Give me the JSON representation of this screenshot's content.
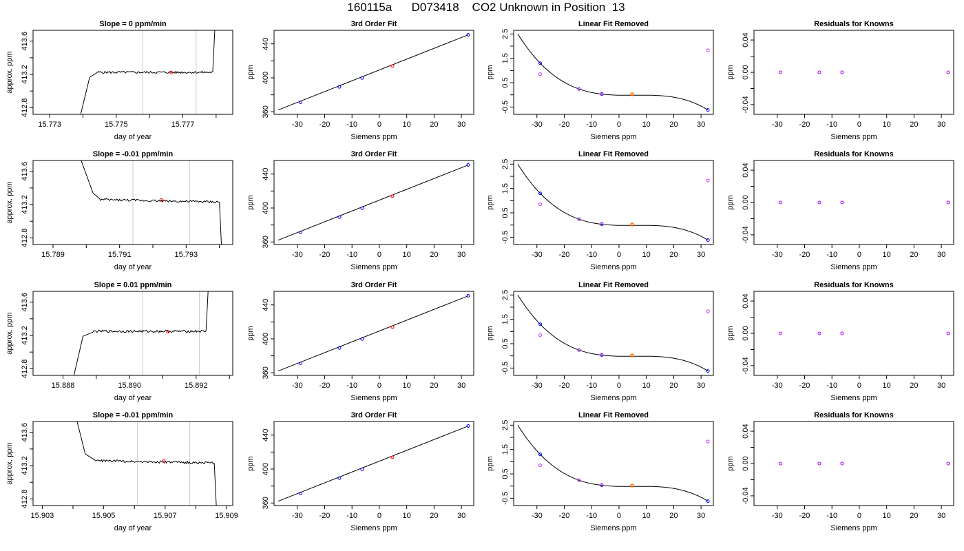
{
  "figure_title": "160115a      D073418    CO2 Unknown in Position  13",
  "colors": {
    "frame": "#000000",
    "vertical_marker": "#c8c8c8",
    "known_point": "#0000ff",
    "unknown_point": "#ff0000",
    "unknown_point_fit": "#ff6600",
    "residual_point": "#aa00ff",
    "observed_point": "#cc33ff"
  },
  "chart_data": [
    {
      "type": "line",
      "title": "Slope =  0  ppm/min",
      "xlabel": "day of year",
      "ylabel": "approx. ppm",
      "xlim": [
        15.7725,
        15.7785
      ],
      "ylim": [
        412.72,
        413.73
      ],
      "xticks": [
        "15.773",
        "15.774",
        "15.775",
        "15.776",
        "15.777",
        "15.778"
      ],
      "xticklabels": [
        "15.773",
        "",
        "15.775",
        "",
        "15.777",
        ""
      ],
      "yticks": [
        "412.8",
        "413.0",
        "413.2",
        "413.4",
        "413.6"
      ],
      "yticklabels": [
        "412.8",
        "",
        "413.2",
        "",
        "413.6"
      ],
      "vlines": [
        15.7758,
        15.7774
      ],
      "trace": {
        "start": 15.7739,
        "rise_end": 15.7742,
        "flat_start": 15.7744,
        "end": 15.7779,
        "shape": "rise",
        "level": 413.225
      },
      "point": {
        "x": 15.77665,
        "y": 413.223
      }
    },
    {
      "type": "scatter",
      "title": "3rd Order Fit",
      "xlabel": "Siemens ppm",
      "ylabel": "ppm",
      "xlim": [
        -38.5,
        34.5
      ],
      "ylim": [
        357,
        456
      ],
      "xticks": [
        -30,
        -20,
        -10,
        0,
        10,
        20,
        30
      ],
      "xticklabels": [
        "-30",
        "-20",
        "-10",
        "0",
        "10",
        "20",
        "30"
      ],
      "yticks": [
        360,
        380,
        400,
        420,
        440
      ],
      "yticklabels": [
        "360",
        "",
        "400",
        "",
        "440"
      ],
      "fit_line": {
        "x": [
          -37,
          32.5
        ],
        "y": [
          362.1,
          450.7
        ]
      },
      "known_x": [
        -28.8,
        -14.6,
        -6.3,
        32.5
      ],
      "known_y": [
        371.2,
        389.3,
        399.8,
        450.7
      ],
      "unknown": {
        "x": 4.8,
        "y": 413.9
      }
    },
    {
      "type": "scatter",
      "title": "Linear Fit Removed",
      "xlabel": "Siemens ppm",
      "ylabel": "ppm",
      "xlim": [
        -38.5,
        34.5
      ],
      "ylim": [
        -0.8,
        2.65
      ],
      "xticks": [
        -30,
        -20,
        -10,
        0,
        10,
        20,
        30
      ],
      "xticklabels": [
        "-30",
        "-20",
        "-10",
        "0",
        "10",
        "20",
        "30"
      ],
      "yticks": [
        -0.5,
        0,
        0.5,
        1,
        1.5,
        2,
        2.5
      ],
      "yticklabels": [
        "-0.5",
        "",
        "0.5",
        "",
        "1.5",
        "",
        "2.5"
      ],
      "fit_curve": {
        "x": [
          -37,
          -28.8,
          -14.6,
          -6.3,
          4.8,
          32.5
        ],
        "y": [
          2.52,
          1.3,
          0.24,
          0.03,
          0.02,
          -0.62
        ]
      },
      "known_x": [
        -28.8,
        -14.6,
        -6.3,
        32.5
      ],
      "known_y": [
        1.3,
        0.24,
        0.03,
        -0.62
      ],
      "observed_x": [
        -28.8,
        -14.6,
        -6.3,
        32.5
      ],
      "observed_y": [
        0.85,
        0.24,
        0.05,
        1.83
      ],
      "unknown": {
        "x": 4.8,
        "y": 0.02
      }
    },
    {
      "type": "scatter",
      "title": "Residuals for Knowns",
      "xlabel": "Siemens ppm",
      "ylabel": "ppm",
      "xlim": [
        -38.5,
        34.5
      ],
      "ylim": [
        -0.052,
        0.052
      ],
      "xticks": [
        -30,
        -20,
        -10,
        0,
        10,
        20,
        30
      ],
      "xticklabels": [
        "-30",
        "-20",
        "-10",
        "0",
        "10",
        "20",
        "30"
      ],
      "yticks": [
        -0.04,
        -0.02,
        0,
        0.02,
        0.04
      ],
      "yticklabels": [
        "-0.04",
        "",
        "0.00",
        "",
        "0.04"
      ],
      "x": [
        -28.8,
        -14.6,
        -6.3,
        32.5
      ],
      "y": [
        0,
        0,
        0,
        0
      ]
    },
    {
      "type": "line",
      "title": "Slope =  -0.01  ppm/min",
      "xlabel": "day of year",
      "ylabel": "approx. ppm",
      "xlim": [
        15.7884,
        15.7944
      ],
      "ylim": [
        412.72,
        413.73
      ],
      "xticks": [
        "15.789",
        "15.790",
        "15.791",
        "15.792",
        "15.793",
        "15.794"
      ],
      "xticklabels": [
        "15.789",
        "",
        "15.791",
        "",
        "15.793",
        ""
      ],
      "yticks": [
        "412.8",
        "413.0",
        "413.2",
        "413.4",
        "413.6"
      ],
      "yticklabels": [
        "412.8",
        "",
        "413.2",
        "",
        "413.6"
      ],
      "vlines": [
        15.7914,
        15.7931
      ],
      "trace": {
        "start": 15.7898,
        "rise_end": 15.7902,
        "flat_start": 15.7904,
        "end": 15.794,
        "shape": "fall",
        "level": 413.26
      },
      "point": {
        "x": 15.79225,
        "y": 413.255
      }
    },
    {
      "type": "scatter",
      "title": "3rd Order Fit",
      "xlabel": "Siemens ppm",
      "ylabel": "ppm",
      "xlim": [
        -38.5,
        34.5
      ],
      "ylim": [
        357,
        456
      ],
      "xticks": [
        -30,
        -20,
        -10,
        0,
        10,
        20,
        30
      ],
      "xticklabels": [
        "-30",
        "-20",
        "-10",
        "0",
        "10",
        "20",
        "30"
      ],
      "yticks": [
        360,
        380,
        400,
        420,
        440
      ],
      "yticklabels": [
        "360",
        "",
        "400",
        "",
        "440"
      ],
      "fit_line": {
        "x": [
          -37,
          32.5
        ],
        "y": [
          362.1,
          450.7
        ]
      },
      "known_x": [
        -28.8,
        -14.6,
        -6.3,
        32.5
      ],
      "known_y": [
        371.2,
        389.3,
        399.8,
        450.7
      ],
      "unknown": {
        "x": 4.8,
        "y": 413.9
      }
    },
    {
      "type": "scatter",
      "title": "Linear Fit Removed",
      "xlabel": "Siemens ppm",
      "ylabel": "ppm",
      "xlim": [
        -38.5,
        34.5
      ],
      "ylim": [
        -0.8,
        2.65
      ],
      "xticks": [
        -30,
        -20,
        -10,
        0,
        10,
        20,
        30
      ],
      "xticklabels": [
        "-30",
        "-20",
        "-10",
        "0",
        "10",
        "20",
        "30"
      ],
      "yticks": [
        -0.5,
        0,
        0.5,
        1,
        1.5,
        2,
        2.5
      ],
      "yticklabels": [
        "-0.5",
        "",
        "0.5",
        "",
        "1.5",
        "",
        "2.5"
      ],
      "fit_curve": {
        "x": [
          -37,
          -28.8,
          -14.6,
          -6.3,
          4.8,
          32.5
        ],
        "y": [
          2.52,
          1.3,
          0.24,
          0.03,
          0.02,
          -0.62
        ]
      },
      "known_x": [
        -28.8,
        -14.6,
        -6.3,
        32.5
      ],
      "known_y": [
        1.3,
        0.24,
        0.03,
        -0.62
      ],
      "observed_x": [
        -28.8,
        -14.6,
        -6.3,
        32.5
      ],
      "observed_y": [
        0.85,
        0.24,
        0.05,
        1.83
      ],
      "unknown": {
        "x": 4.8,
        "y": 0.02
      }
    },
    {
      "type": "scatter",
      "title": "Residuals for Knowns",
      "xlabel": "Siemens ppm",
      "ylabel": "ppm",
      "xlim": [
        -38.5,
        34.5
      ],
      "ylim": [
        -0.052,
        0.052
      ],
      "xticks": [
        -30,
        -20,
        -10,
        0,
        10,
        20,
        30
      ],
      "xticklabels": [
        "-30",
        "-20",
        "-10",
        "0",
        "10",
        "20",
        "30"
      ],
      "yticks": [
        -0.04,
        -0.02,
        0,
        0.02,
        0.04
      ],
      "yticklabels": [
        "-0.04",
        "",
        "0.00",
        "",
        "0.04"
      ],
      "x": [
        -28.8,
        -14.6,
        -6.3,
        32.5
      ],
      "y": [
        0,
        0,
        0,
        0
      ]
    },
    {
      "type": "line",
      "title": "Slope =  0.01  ppm/min",
      "xlabel": "day of year",
      "ylabel": "approx. ppm",
      "xlim": [
        15.8871,
        15.8931
      ],
      "ylim": [
        412.72,
        413.73
      ],
      "xticks": [
        "15.888",
        "15.889",
        "15.890",
        "15.891",
        "15.892",
        "15.893"
      ],
      "xticklabels": [
        "15.888",
        "",
        "15.890",
        "",
        "15.892",
        ""
      ],
      "yticks": [
        "412.8",
        "413.0",
        "413.2",
        "413.4",
        "413.6"
      ],
      "yticklabels": [
        "412.8",
        "",
        "413.2",
        "",
        "413.6"
      ],
      "vlines": [
        15.8904,
        15.8921
      ],
      "trace": {
        "start": 15.8883,
        "rise_end": 15.8886,
        "flat_start": 15.8889,
        "end": 15.8923,
        "shape": "rise",
        "level": 413.25
      },
      "point": {
        "x": 15.89115,
        "y": 413.245
      }
    },
    {
      "type": "scatter",
      "title": "3rd Order Fit",
      "xlabel": "Siemens ppm",
      "ylabel": "ppm",
      "xlim": [
        -38.5,
        34.5
      ],
      "ylim": [
        357,
        456
      ],
      "xticks": [
        -30,
        -20,
        -10,
        0,
        10,
        20,
        30
      ],
      "xticklabels": [
        "-30",
        "-20",
        "-10",
        "0",
        "10",
        "20",
        "30"
      ],
      "yticks": [
        360,
        380,
        400,
        420,
        440
      ],
      "yticklabels": [
        "360",
        "",
        "400",
        "",
        "440"
      ],
      "fit_line": {
        "x": [
          -37,
          32.5
        ],
        "y": [
          362.1,
          450.7
        ]
      },
      "known_x": [
        -28.8,
        -14.6,
        -6.3,
        32.5
      ],
      "known_y": [
        371.2,
        389.3,
        399.8,
        450.7
      ],
      "unknown": {
        "x": 4.8,
        "y": 413.9
      }
    },
    {
      "type": "scatter",
      "title": "Linear Fit Removed",
      "xlabel": "Siemens ppm",
      "ylabel": "ppm",
      "xlim": [
        -38.5,
        34.5
      ],
      "ylim": [
        -0.8,
        2.65
      ],
      "xticks": [
        -30,
        -20,
        -10,
        0,
        10,
        20,
        30
      ],
      "xticklabels": [
        "-30",
        "-20",
        "-10",
        "0",
        "10",
        "20",
        "30"
      ],
      "yticks": [
        -0.5,
        0,
        0.5,
        1,
        1.5,
        2,
        2.5
      ],
      "yticklabels": [
        "-0.5",
        "",
        "0.5",
        "",
        "1.5",
        "",
        "2.5"
      ],
      "fit_curve": {
        "x": [
          -37,
          -28.8,
          -14.6,
          -6.3,
          4.8,
          32.5
        ],
        "y": [
          2.52,
          1.3,
          0.24,
          0.03,
          0.02,
          -0.62
        ]
      },
      "known_x": [
        -28.8,
        -14.6,
        -6.3,
        32.5
      ],
      "known_y": [
        1.3,
        0.24,
        0.03,
        -0.62
      ],
      "observed_x": [
        -28.8,
        -14.6,
        -6.3,
        32.5
      ],
      "observed_y": [
        0.85,
        0.24,
        0.05,
        1.83
      ],
      "unknown": {
        "x": 4.8,
        "y": 0.02
      }
    },
    {
      "type": "scatter",
      "title": "Residuals for Knowns",
      "xlabel": "Siemens ppm",
      "ylabel": "ppm",
      "xlim": [
        -38.5,
        34.5
      ],
      "ylim": [
        -0.052,
        0.052
      ],
      "xticks": [
        -30,
        -20,
        -10,
        0,
        10,
        20,
        30
      ],
      "xticklabels": [
        "-30",
        "-20",
        "-10",
        "0",
        "10",
        "20",
        "30"
      ],
      "yticks": [
        -0.04,
        -0.02,
        0,
        0.02,
        0.04
      ],
      "yticklabels": [
        "-0.04",
        "",
        "0.00",
        "",
        "0.04"
      ],
      "x": [
        -28.8,
        -14.6,
        -6.3,
        32.5
      ],
      "y": [
        0,
        0,
        0,
        0
      ]
    },
    {
      "type": "line",
      "title": "Slope =  -0.01  ppm/min",
      "xlabel": "day of year",
      "ylabel": "approx. ppm",
      "xlim": [
        15.9027,
        15.9092
      ],
      "ylim": [
        412.72,
        413.73
      ],
      "xticks": [
        "15.903",
        "15.904",
        "15.905",
        "15.906",
        "15.907",
        "15.908",
        "15.909"
      ],
      "xticklabels": [
        "15.903",
        "",
        "15.905",
        "",
        "15.907",
        "",
        "15.909"
      ],
      "yticks": [
        "412.8",
        "413.0",
        "413.2",
        "413.4",
        "413.6"
      ],
      "yticklabels": [
        "412.8",
        "",
        "413.2",
        "",
        "413.6"
      ],
      "vlines": [
        15.9061,
        15.9078
      ],
      "trace": {
        "start": 15.9041,
        "rise_end": 15.9044,
        "flat_start": 15.9047,
        "end": 15.9086,
        "shape": "fall",
        "level": 413.26
      },
      "point": {
        "x": 15.90695,
        "y": 413.255
      }
    },
    {
      "type": "scatter",
      "title": "3rd Order Fit",
      "xlabel": "Siemens ppm",
      "ylabel": "ppm",
      "xlim": [
        -38.5,
        34.5
      ],
      "ylim": [
        357,
        456
      ],
      "xticks": [
        -30,
        -20,
        -10,
        0,
        10,
        20,
        30
      ],
      "xticklabels": [
        "-30",
        "-20",
        "-10",
        "0",
        "10",
        "20",
        "30"
      ],
      "yticks": [
        360,
        380,
        400,
        420,
        440
      ],
      "yticklabels": [
        "360",
        "",
        "400",
        "",
        "440"
      ],
      "fit_line": {
        "x": [
          -37,
          32.5
        ],
        "y": [
          362.1,
          450.7
        ]
      },
      "known_x": [
        -28.8,
        -14.6,
        -6.3,
        32.5
      ],
      "known_y": [
        371.2,
        389.3,
        399.8,
        450.7
      ],
      "unknown": {
        "x": 4.8,
        "y": 413.9
      }
    },
    {
      "type": "scatter",
      "title": "Linear Fit Removed",
      "xlabel": "Siemens ppm",
      "ylabel": "ppm",
      "xlim": [
        -38.5,
        34.5
      ],
      "ylim": [
        -0.8,
        2.65
      ],
      "xticks": [
        -30,
        -20,
        -10,
        0,
        10,
        20,
        30
      ],
      "xticklabels": [
        "-30",
        "-20",
        "-10",
        "0",
        "10",
        "20",
        "30"
      ],
      "yticks": [
        -0.5,
        0,
        0.5,
        1,
        1.5,
        2,
        2.5
      ],
      "yticklabels": [
        "-0.5",
        "",
        "0.5",
        "",
        "1.5",
        "",
        "2.5"
      ],
      "fit_curve": {
        "x": [
          -37,
          -28.8,
          -14.6,
          -6.3,
          4.8,
          32.5
        ],
        "y": [
          2.52,
          1.3,
          0.24,
          0.03,
          0.02,
          -0.62
        ]
      },
      "known_x": [
        -28.8,
        -14.6,
        -6.3,
        32.5
      ],
      "known_y": [
        1.3,
        0.24,
        0.03,
        -0.62
      ],
      "observed_x": [
        -28.8,
        -14.6,
        -6.3,
        32.5
      ],
      "observed_y": [
        0.85,
        0.24,
        0.05,
        1.83
      ],
      "unknown": {
        "x": 4.8,
        "y": 0.02
      }
    },
    {
      "type": "scatter",
      "title": "Residuals for Knowns",
      "xlabel": "Siemens ppm",
      "ylabel": "ppm",
      "xlim": [
        -38.5,
        34.5
      ],
      "ylim": [
        -0.052,
        0.052
      ],
      "xticks": [
        -30,
        -20,
        -10,
        0,
        10,
        20,
        30
      ],
      "xticklabels": [
        "-30",
        "-20",
        "-10",
        "0",
        "10",
        "20",
        "30"
      ],
      "yticks": [
        -0.04,
        -0.02,
        0,
        0.02,
        0.04
      ],
      "yticklabels": [
        "-0.04",
        "",
        "0.00",
        "",
        "0.04"
      ],
      "x": [
        -28.8,
        -14.6,
        -6.3,
        32.5
      ],
      "y": [
        0,
        0,
        0,
        0
      ]
    }
  ]
}
